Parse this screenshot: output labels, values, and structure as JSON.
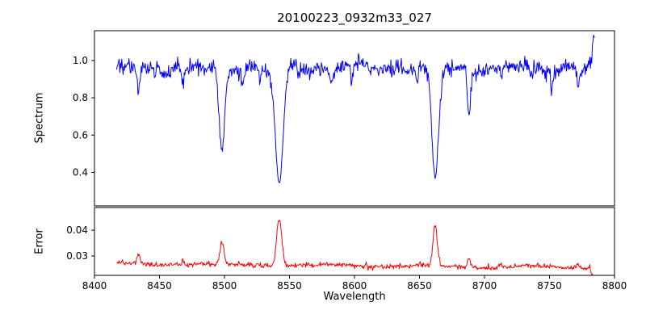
{
  "figure": {
    "title": "20100223_0932m33_027",
    "xlabel": "Wavelength",
    "ylabel_top": "Spectrum",
    "ylabel_bottom": "Error",
    "background": "#ffffff"
  },
  "chart_data": {
    "type": "line",
    "title": "20100223_0932m33_027",
    "xlabel": "Wavelength",
    "x_range": [
      8400,
      8800
    ],
    "x_ticks": [
      "8400",
      "8450",
      "8500",
      "8550",
      "8600",
      "8650",
      "8700",
      "8750",
      "8800"
    ],
    "grid": false,
    "legend": "none",
    "sampling": {
      "start": 8417,
      "end": 8784.5,
      "step": 0.5,
      "seed": 20100223
    },
    "panels": [
      {
        "id": "spectrum",
        "ylabel": "Spectrum",
        "line_color": "#0000ff",
        "y_range": [
          0.22,
          1.16
        ],
        "y_ticks": [
          "0.4",
          "0.6",
          "0.8",
          "1.0"
        ],
        "baseline": 0.96,
        "baseline_slope": 0,
        "noise_std": 0.022,
        "noise_proportional": true,
        "wobbles": [
          {
            "period": 60,
            "amp": 0.012,
            "phase": 0.8
          },
          {
            "period": 27,
            "amp": 0.009,
            "phase": 2.3
          }
        ],
        "features": [
          {
            "center": 8434.0,
            "amp": -0.13,
            "sigma": 1.2
          },
          {
            "center": 8452.0,
            "amp": -0.06,
            "sigma": 0.9
          },
          {
            "center": 8468.0,
            "amp": -0.1,
            "sigma": 1.0
          },
          {
            "center": 8498.0,
            "amp": -0.46,
            "sigma": 2.2
          },
          {
            "center": 8514.0,
            "amp": -0.08,
            "sigma": 1.0
          },
          {
            "center": 8527.0,
            "amp": -0.06,
            "sigma": 0.9
          },
          {
            "center": 8542.1,
            "amp": -0.63,
            "sigma": 3.0
          },
          {
            "center": 8582.0,
            "amp": -0.07,
            "sigma": 0.9
          },
          {
            "center": 8598.0,
            "amp": -0.08,
            "sigma": 0.9
          },
          {
            "center": 8648.0,
            "amp": -0.06,
            "sigma": 0.9
          },
          {
            "center": 8662.1,
            "amp": -0.6,
            "sigma": 2.6
          },
          {
            "center": 8688.0,
            "amp": -0.25,
            "sigma": 1.3
          },
          {
            "center": 8713.0,
            "amp": -0.07,
            "sigma": 0.9
          },
          {
            "center": 8736.0,
            "amp": -0.06,
            "sigma": 0.9
          },
          {
            "center": 8752.0,
            "amp": -0.08,
            "sigma": 0.9
          },
          {
            "center": 8772.0,
            "amp": -0.1,
            "sigma": 0.9
          },
          {
            "center": 8784.0,
            "amp": 0.16,
            "sigma": 1.0
          }
        ]
      },
      {
        "id": "error",
        "ylabel": "Error",
        "line_color": "#ff0000",
        "y_range": [
          0.0225,
          0.0488
        ],
        "y_ticks": [
          "0.03",
          "0.04"
        ],
        "baseline": 0.027,
        "baseline_slope": -4e-06,
        "noise_std": 0.0005,
        "noise_proportional": false,
        "wobbles": [
          {
            "period": 80,
            "amp": 0.0004,
            "phase": 1.5
          }
        ],
        "features": [
          {
            "center": 8434.0,
            "amp": 0.004,
            "sigma": 1.0
          },
          {
            "center": 8468.0,
            "amp": 0.002,
            "sigma": 0.9
          },
          {
            "center": 8498.0,
            "amp": 0.008,
            "sigma": 1.5
          },
          {
            "center": 8542.1,
            "amp": 0.0185,
            "sigma": 2.0
          },
          {
            "center": 8662.1,
            "amp": 0.016,
            "sigma": 1.6
          },
          {
            "center": 8688.0,
            "amp": 0.004,
            "sigma": 1.0
          },
          {
            "center": 8713.0,
            "amp": 0.0015,
            "sigma": 0.8
          },
          {
            "center": 8772.0,
            "amp": 0.002,
            "sigma": 0.8
          },
          {
            "center": 8784.0,
            "amp": -0.004,
            "sigma": 1.2
          }
        ]
      }
    ]
  }
}
